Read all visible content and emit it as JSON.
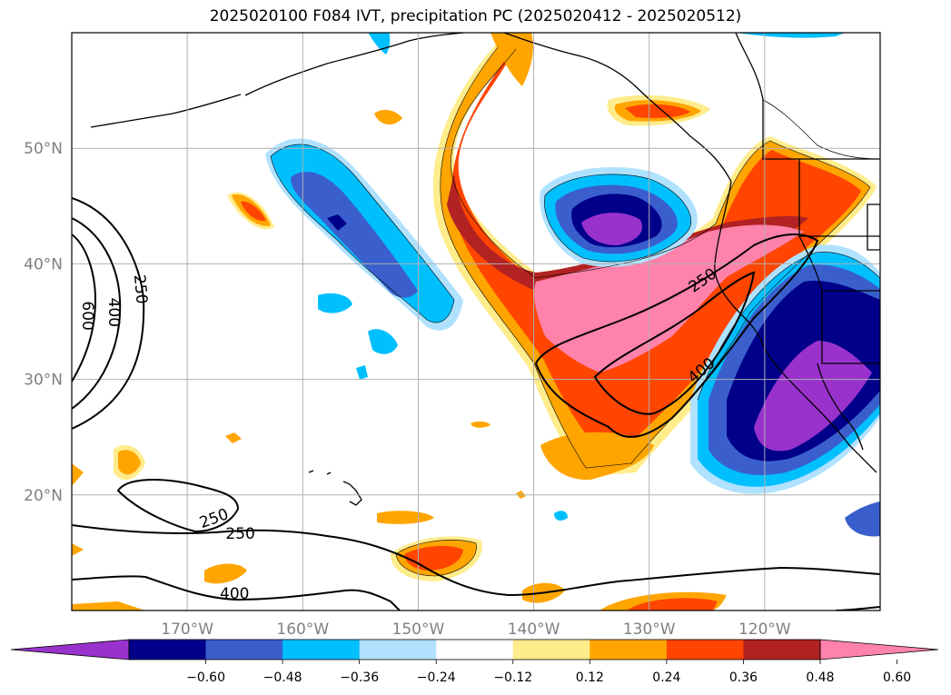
{
  "title": "2025020100 F084 IVT, precipitation PC (2025020412 - 2025020512)",
  "map": {
    "projection": "plate-carree",
    "lon_range": [
      -180,
      -110
    ],
    "lat_range": [
      10,
      60
    ],
    "lat_ticks": [
      {
        "value": 20,
        "label": "20°N"
      },
      {
        "value": 30,
        "label": "30°N"
      },
      {
        "value": 40,
        "label": "40°N"
      },
      {
        "value": 50,
        "label": "50°N"
      }
    ],
    "lon_ticks": [
      {
        "value": -170,
        "label": "170°W"
      },
      {
        "value": -160,
        "label": "160°W"
      },
      {
        "value": -150,
        "label": "150°W"
      },
      {
        "value": -140,
        "label": "140°W"
      },
      {
        "value": -130,
        "label": "130°W"
      },
      {
        "value": -120,
        "label": "120°W"
      }
    ],
    "grid": true
  },
  "ivt_contours": {
    "color": "#000000",
    "labels": [
      {
        "text": "600",
        "lon": -178.6,
        "lat": 35.5,
        "rotate": 90
      },
      {
        "text": "400",
        "lon": -176.3,
        "lat": 35.8,
        "rotate": 90
      },
      {
        "text": "250",
        "lon": -174.0,
        "lat": 37.8,
        "rotate": 85
      },
      {
        "text": "250",
        "lon": -125.4,
        "lat": 38.6,
        "rotate": -35
      },
      {
        "text": "400",
        "lon": -125.5,
        "lat": 30.8,
        "rotate": -40
      },
      {
        "text": "250",
        "lon": -167.7,
        "lat": 18.0,
        "rotate": -20
      },
      {
        "text": "250",
        "lon": -165.4,
        "lat": 16.7,
        "rotate": 0
      },
      {
        "text": "400",
        "lon": -165.9,
        "lat": 11.5,
        "rotate": 0
      }
    ]
  },
  "colorbar": {
    "levels": [
      "-0.60",
      "-0.48",
      "-0.36",
      "-0.24",
      "-0.12",
      "0.12",
      "0.24",
      "0.36",
      "0.48",
      "0.60"
    ],
    "colors": [
      "#9932cc",
      "#00008b",
      "#3a5fcd",
      "#00bfff",
      "#b0e2ff",
      "#ffffff",
      "#ffec8b",
      "#ffa500",
      "#ff4500",
      "#b22222",
      "#ff82ab"
    ],
    "extend": "both"
  }
}
